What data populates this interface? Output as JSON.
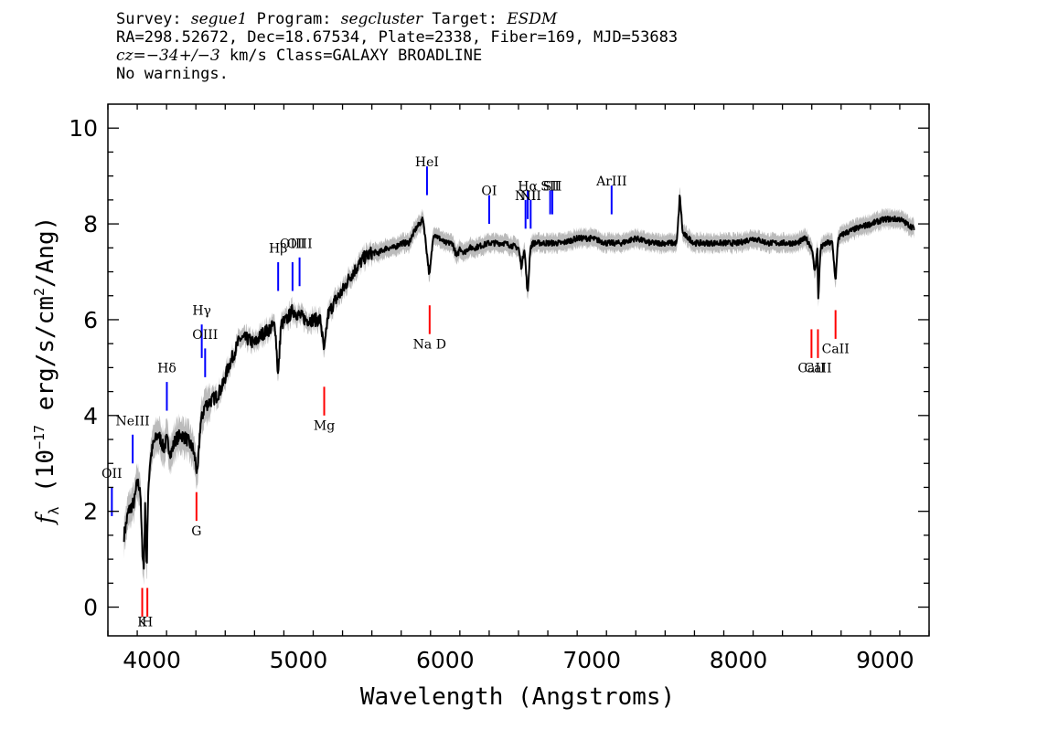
{
  "header": {
    "line1": {
      "survey_label": "Survey: ",
      "survey": "segue1",
      "program_label": " Program: ",
      "program": "segcluster",
      "target_label": " Target: ",
      "target": "ESDM"
    },
    "line2": "RA=298.52672, Dec=18.67534, Plate=2338, Fiber=169, MJD=53683",
    "line3": {
      "cz": "cz=−34+/−3",
      "rest": " km/s Class=GALAXY BROADLINE"
    },
    "line4": "No warnings."
  },
  "chart_data": {
    "type": "line",
    "title": "",
    "xlabel": "Wavelength (Angstroms)",
    "ylabel": "f_λ (10^-17 erg/s/cm^2/Ang)",
    "ylabel_parts": {
      "f": "f",
      "sub": "λ",
      "pre": " (10",
      "exp": "−17",
      "mid": " erg/s/cm",
      "exp2": "2",
      "post": "/Ang)"
    },
    "xlim": [
      3700,
      9300
    ],
    "ylim": [
      -0.6,
      10.5
    ],
    "grid": false,
    "x_ticks": [
      4000,
      5000,
      6000,
      7000,
      8000,
      9000
    ],
    "x_tick_labels": [
      "4000",
      "5000",
      "6000",
      "7000",
      "8000",
      "9000"
    ],
    "y_ticks": [
      0,
      2,
      4,
      6,
      8,
      10
    ],
    "y_tick_labels": [
      "0",
      "2",
      "4",
      "6",
      "8",
      "10"
    ],
    "colors": {
      "flux": "#000000",
      "error_band": "#bbbbbb",
      "emission": "#0000ff",
      "absorption": "#ff0000"
    },
    "flux_anchors": [
      [
        3810,
        1.5
      ],
      [
        3840,
        2.0
      ],
      [
        3880,
        2.2
      ],
      [
        3900,
        2.6
      ],
      [
        3920,
        2.5
      ],
      [
        3933,
        1.3
      ],
      [
        3945,
        0.8
      ],
      [
        3955,
        2.2
      ],
      [
        3965,
        0.7
      ],
      [
        3975,
        2.5
      ],
      [
        3990,
        3.1
      ],
      [
        4010,
        3.4
      ],
      [
        4040,
        3.6
      ],
      [
        4060,
        3.5
      ],
      [
        4080,
        3.3
      ],
      [
        4100,
        3.5
      ],
      [
        4130,
        3.2
      ],
      [
        4160,
        3.5
      ],
      [
        4200,
        3.6
      ],
      [
        4240,
        3.5
      ],
      [
        4280,
        3.3
      ],
      [
        4300,
        3.0
      ],
      [
        4310,
        2.7
      ],
      [
        4330,
        3.8
      ],
      [
        4360,
        4.2
      ],
      [
        4400,
        4.3
      ],
      [
        4440,
        4.4
      ],
      [
        4480,
        4.6
      ],
      [
        4520,
        5.0
      ],
      [
        4560,
        5.3
      ],
      [
        4600,
        5.6
      ],
      [
        4650,
        5.6
      ],
      [
        4700,
        5.5
      ],
      [
        4750,
        5.7
      ],
      [
        4800,
        5.8
      ],
      [
        4840,
        5.9
      ],
      [
        4861,
        4.8
      ],
      [
        4880,
        5.9
      ],
      [
        4920,
        6.0
      ],
      [
        4960,
        6.2
      ],
      [
        5000,
        6.1
      ],
      [
        5050,
        6.0
      ],
      [
        5100,
        6.0
      ],
      [
        5150,
        6.0
      ],
      [
        5175,
        5.3
      ],
      [
        5200,
        6.1
      ],
      [
        5250,
        6.4
      ],
      [
        5300,
        6.6
      ],
      [
        5350,
        6.9
      ],
      [
        5400,
        7.1
      ],
      [
        5450,
        7.3
      ],
      [
        5500,
        7.4
      ],
      [
        5550,
        7.4
      ],
      [
        5600,
        7.5
      ],
      [
        5650,
        7.5
      ],
      [
        5700,
        7.6
      ],
      [
        5750,
        7.6
      ],
      [
        5800,
        7.9
      ],
      [
        5850,
        8.1
      ],
      [
        5893,
        6.9
      ],
      [
        5920,
        7.8
      ],
      [
        5960,
        7.7
      ],
      [
        6000,
        7.6
      ],
      [
        6050,
        7.6
      ],
      [
        6080,
        7.3
      ],
      [
        6100,
        7.5
      ],
      [
        6130,
        7.4
      ],
      [
        6160,
        7.5
      ],
      [
        6200,
        7.5
      ],
      [
        6300,
        7.6
      ],
      [
        6400,
        7.6
      ],
      [
        6500,
        7.5
      ],
      [
        6520,
        7.1
      ],
      [
        6540,
        7.5
      ],
      [
        6563,
        6.5
      ],
      [
        6580,
        7.5
      ],
      [
        6600,
        7.6
      ],
      [
        6700,
        7.6
      ],
      [
        6800,
        7.6
      ],
      [
        6900,
        7.7
      ],
      [
        7000,
        7.7
      ],
      [
        7100,
        7.6
      ],
      [
        7200,
        7.6
      ],
      [
        7300,
        7.7
      ],
      [
        7400,
        7.6
      ],
      [
        7500,
        7.6
      ],
      [
        7580,
        7.6
      ],
      [
        7600,
        8.6
      ],
      [
        7620,
        7.8
      ],
      [
        7700,
        7.6
      ],
      [
        7800,
        7.6
      ],
      [
        7900,
        7.6
      ],
      [
        8000,
        7.6
      ],
      [
        8100,
        7.7
      ],
      [
        8200,
        7.6
      ],
      [
        8300,
        7.6
      ],
      [
        8400,
        7.6
      ],
      [
        8460,
        7.7
      ],
      [
        8500,
        7.5
      ],
      [
        8520,
        7.0
      ],
      [
        8540,
        7.5
      ],
      [
        8542,
        6.3
      ],
      [
        8560,
        7.5
      ],
      [
        8600,
        7.6
      ],
      [
        8640,
        7.6
      ],
      [
        8662,
        6.8
      ],
      [
        8680,
        7.7
      ],
      [
        8720,
        7.8
      ],
      [
        8800,
        7.9
      ],
      [
        8900,
        8.0
      ],
      [
        9000,
        8.1
      ],
      [
        9100,
        8.1
      ],
      [
        9150,
        8.0
      ],
      [
        9200,
        7.9
      ]
    ],
    "emission_lines": [
      {
        "label": "OII",
        "wavelength": 3727,
        "y_text": 2.7,
        "y_line": [
          1.9,
          2.5
        ]
      },
      {
        "label": "NeIII",
        "wavelength": 3869,
        "y_text": 3.8,
        "y_line": [
          3.0,
          3.6
        ]
      },
      {
        "label": "Hδ",
        "wavelength": 4102,
        "y_text": 4.9,
        "y_line": [
          4.1,
          4.7
        ]
      },
      {
        "label": "Hγ",
        "wavelength": 4340,
        "y_text": 6.1,
        "y_line": [
          5.2,
          5.9
        ]
      },
      {
        "label": "OIII",
        "wavelength": 4363,
        "y_text": 5.6,
        "y_line": [
          4.8,
          5.4
        ]
      },
      {
        "label": "Hβ",
        "wavelength": 4861,
        "y_text": 7.4,
        "y_line": [
          6.6,
          7.2
        ]
      },
      {
        "label": "OIII",
        "wavelength": 4959,
        "y_text": 7.5,
        "y_line": [
          6.6,
          7.2
        ]
      },
      {
        "label": "OIII",
        "wavelength": 5007,
        "y_text": 7.5,
        "y_line": [
          6.7,
          7.3
        ]
      },
      {
        "label": "HeI",
        "wavelength": 5876,
        "y_text": 9.2,
        "y_line": [
          8.6,
          9.2
        ]
      },
      {
        "label": "OI",
        "wavelength": 6300,
        "y_text": 8.6,
        "y_line": [
          8.0,
          8.6
        ]
      },
      {
        "label": "NII",
        "wavelength": 6548,
        "y_text": 8.5,
        "y_line": [
          7.9,
          8.5
        ]
      },
      {
        "label": "Hα",
        "wavelength": 6563,
        "y_text": 8.7,
        "y_line": [
          8.1,
          8.7
        ]
      },
      {
        "label": "NII",
        "wavelength": 6583,
        "y_text": 8.5,
        "y_line": [
          7.9,
          8.5
        ]
      },
      {
        "label": "SII",
        "wavelength": 6716,
        "y_text": 8.7,
        "y_line": [
          8.2,
          8.7
        ]
      },
      {
        "label": "SII",
        "wavelength": 6731,
        "y_text": 8.7,
        "y_line": [
          8.2,
          8.7
        ]
      },
      {
        "label": "ArIII",
        "wavelength": 7135,
        "y_text": 8.8,
        "y_line": [
          8.2,
          8.8
        ]
      }
    ],
    "absorption_lines": [
      {
        "label": "K",
        "wavelength": 3934,
        "y_text": -0.4,
        "y_line": [
          -0.2,
          0.4
        ]
      },
      {
        "label": "H",
        "wavelength": 3969,
        "y_text": -0.4,
        "y_line": [
          -0.2,
          0.4
        ]
      },
      {
        "label": "G",
        "wavelength": 4304,
        "y_text": 1.5,
        "y_line": [
          1.8,
          2.4
        ]
      },
      {
        "label": "Mg",
        "wavelength": 5175,
        "y_text": 3.7,
        "y_line": [
          4.0,
          4.6
        ]
      },
      {
        "label": "Na D",
        "wavelength": 5894,
        "y_text": 5.4,
        "y_line": [
          5.7,
          6.3
        ]
      },
      {
        "label": "CaII",
        "wavelength": 8498,
        "y_text": 4.9,
        "y_line": [
          5.2,
          5.8
        ]
      },
      {
        "label": "CaII",
        "wavelength": 8542,
        "y_text": 4.9,
        "y_line": [
          5.2,
          5.8
        ]
      },
      {
        "label": "CaII",
        "wavelength": 8662,
        "y_text": 5.3,
        "y_line": [
          5.6,
          6.2
        ]
      }
    ]
  }
}
